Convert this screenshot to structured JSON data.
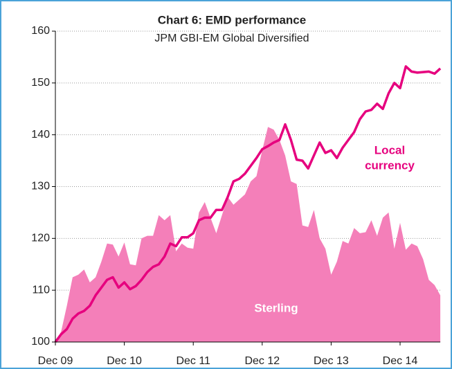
{
  "chart_data": {
    "type": "line",
    "title": "Chart 6: EMD performance",
    "subtitle": "JPM GBI-EM Global Diversified",
    "categories": [
      "Dec 09",
      null,
      null,
      null,
      null,
      null,
      null,
      null,
      null,
      null,
      null,
      null,
      "Dec 10",
      null,
      null,
      null,
      null,
      null,
      null,
      null,
      null,
      null,
      null,
      null,
      "Dec 11",
      null,
      null,
      null,
      null,
      null,
      null,
      null,
      null,
      null,
      null,
      null,
      "Dec 12",
      null,
      null,
      null,
      null,
      null,
      null,
      null,
      null,
      null,
      null,
      null,
      "Dec 13",
      null,
      null,
      null,
      null,
      null,
      null,
      null,
      null,
      null,
      null,
      null,
      "Dec 14",
      null,
      null,
      null,
      null,
      null,
      null,
      null
    ],
    "series": [
      {
        "kind": "area",
        "color": "#f47fb9",
        "values": [
          100,
          102,
          107,
          112.5,
          113,
          114,
          111.5,
          112.5,
          115.5,
          119,
          118.8,
          116.5,
          119.2,
          115,
          114.8,
          120,
          120.5,
          120.5,
          124.5,
          123.5,
          124.5,
          117.5,
          119,
          118.2,
          118,
          125,
          127,
          124,
          121,
          124.5,
          128,
          126.5,
          127.5,
          128.5,
          131,
          132,
          137,
          141.5,
          141,
          139,
          136,
          131,
          130.5,
          122.5,
          122.2,
          125.5,
          120,
          118,
          113,
          115.5,
          119.5,
          119,
          122,
          121,
          121.2,
          123.5,
          120.5,
          124,
          125,
          118,
          123,
          117.8,
          119,
          118.5,
          116,
          112,
          111,
          109
        ]
      },
      {
        "kind": "line",
        "color": "#e6007e",
        "values": [
          100,
          101.5,
          102.5,
          104.5,
          105.5,
          106,
          107,
          109,
          110.5,
          112,
          112.5,
          110.5,
          111.5,
          110.2,
          110.8,
          112,
          113.5,
          114.5,
          115,
          116.5,
          119,
          118.5,
          120.2,
          120.2,
          121,
          123.5,
          124,
          124,
          125.5,
          125.5,
          128,
          131,
          131.5,
          132.5,
          134,
          135.5,
          137.2,
          137.8,
          138.5,
          139,
          142,
          139,
          135.2,
          135,
          133.5,
          136,
          138.5,
          136.5,
          137,
          135.5,
          137.5,
          139,
          140.5,
          143,
          144.5,
          144.8,
          146,
          145,
          148,
          150,
          149,
          153.2,
          152.2,
          152,
          152.1,
          152.2,
          151.8,
          152.8
        ]
      }
    ],
    "annotations": [
      {
        "lines": [
          "Local",
          "currency"
        ],
        "color": "#e6007e"
      },
      {
        "lines": [
          "Sterling"
        ],
        "color": "#ffffff"
      }
    ],
    "ylim": [
      100,
      160
    ],
    "yticks": [
      100,
      110,
      120,
      130,
      140,
      150,
      160
    ],
    "grid": true
  }
}
